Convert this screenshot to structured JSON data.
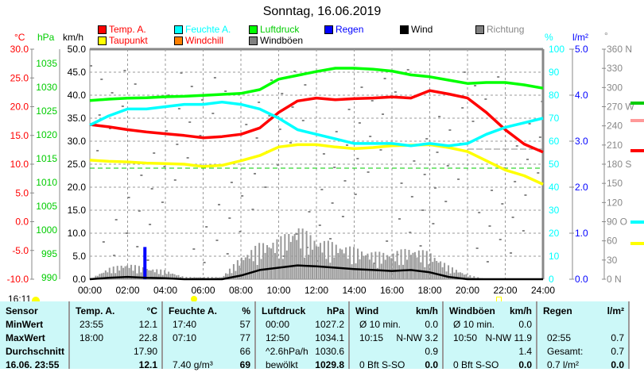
{
  "title": "Sonntag, 16.06.2019",
  "legend": [
    {
      "label": "Temp. A.",
      "color": "#ff0000"
    },
    {
      "label": "Feuchte A.",
      "color": "#00ffff"
    },
    {
      "label": "Luftdruck",
      "color": "#00ff00"
    },
    {
      "label": "Regen",
      "color": "#0000ff"
    },
    {
      "label": "Wind",
      "color": "#000000"
    },
    {
      "label": "Richtung",
      "color": "#808080"
    },
    {
      "label": "Taupunkt",
      "color": "#ffff00"
    },
    {
      "label": "Windchill",
      "color": "#ff8000"
    },
    {
      "label": "Windböen",
      "color": "#808080"
    }
  ],
  "units": {
    "temp": "°C",
    "pressure": "hPa",
    "wind": "km/h",
    "humidity": "%",
    "rain": "l/m²",
    "direction": "°"
  },
  "axes": {
    "temp": [
      "30.0",
      "25.0",
      "20.0",
      "15.0",
      "10.0",
      "5.0",
      "0.0",
      "-5.0",
      "-10.0"
    ],
    "pressure": [
      "1035",
      "1030",
      "1025",
      "1020",
      "1015",
      "1010",
      "1005",
      "1000",
      "995",
      "990"
    ],
    "wind": [
      "50.0",
      "45.0",
      "40.0",
      "35.0",
      "30.0",
      "25.0",
      "20.0",
      "15.0",
      "10.0",
      "5.0",
      "0.0"
    ],
    "humidity": [
      "100",
      "90",
      "80",
      "70",
      "60",
      "50",
      "40",
      "30",
      "20",
      "10",
      "0"
    ],
    "rain": [
      "5.0",
      "4.0",
      "3.0",
      "2.0",
      "1.0",
      "0.0"
    ],
    "direction": [
      "360 N",
      "330",
      "300",
      "270 W",
      "240",
      "210",
      "180 S",
      "150",
      "120",
      "90  O",
      "60",
      "30",
      "0   N"
    ],
    "time": [
      "00:00",
      "02:00",
      "04:00",
      "06:00",
      "08:00",
      "10:00",
      "12:00",
      "14:00",
      "16:00",
      "18:00",
      "20:00",
      "22:00",
      "24:00"
    ]
  },
  "chart_data": {
    "type": "line",
    "x_hours": [
      0,
      1,
      2,
      3,
      4,
      5,
      6,
      7,
      8,
      9,
      10,
      11,
      12,
      13,
      14,
      15,
      16,
      17,
      18,
      19,
      20,
      21,
      22,
      23,
      24
    ],
    "series": [
      {
        "name": "Temp. A.",
        "unit": "°C",
        "color": "#ff0000",
        "values": [
          16.9,
          16.5,
          16.0,
          15.6,
          15.3,
          15.0,
          14.6,
          14.8,
          15.2,
          16.3,
          19.0,
          21.0,
          21.5,
          21.2,
          21.4,
          21.5,
          21.7,
          21.5,
          22.8,
          22.2,
          21.5,
          19.0,
          16.0,
          13.5,
          12.1
        ]
      },
      {
        "name": "Taupunkt",
        "unit": "°C",
        "color": "#ffff00",
        "values": [
          10.7,
          10.5,
          10.4,
          10.2,
          10.1,
          10.0,
          9.6,
          9.8,
          10.6,
          11.5,
          13.0,
          13.4,
          13.4,
          13.0,
          12.7,
          12.9,
          13.2,
          13.3,
          13.4,
          12.9,
          12.2,
          10.6,
          9.0,
          8.0,
          6.5
        ]
      },
      {
        "name": "Feuchte A.",
        "unit": "%",
        "color": "#00ffff",
        "values": [
          67,
          71,
          74,
          74,
          75,
          76,
          76,
          77,
          76,
          74,
          70,
          65,
          63,
          61,
          59,
          59,
          59,
          58,
          59,
          58,
          59,
          63,
          66,
          68,
          70
        ]
      },
      {
        "name": "Luftdruck",
        "unit": "hPa",
        "color": "#00ff00",
        "values": [
          1027.2,
          1027.5,
          1027.7,
          1027.8,
          1028.0,
          1028.1,
          1028.3,
          1028.5,
          1028.7,
          1029.5,
          1031.7,
          1032.5,
          1033.3,
          1034.0,
          1034.0,
          1033.8,
          1033.4,
          1032.6,
          1032.2,
          1031.5,
          1030.8,
          1031.0,
          1031.0,
          1030.5,
          1029.8
        ]
      },
      {
        "name": "Wind",
        "unit": "km/h",
        "color": "#000000",
        "values": [
          0.0,
          0.3,
          0.5,
          0.3,
          0.2,
          0.0,
          0.0,
          0.0,
          0.8,
          2.0,
          2.5,
          3.0,
          2.8,
          2.5,
          2.2,
          2.0,
          1.8,
          2.0,
          1.5,
          0.5,
          0.0,
          0.0,
          0.0,
          0.0,
          0.0
        ]
      },
      {
        "name": "Windböen",
        "unit": "km/h",
        "color": "#808080",
        "values": [
          0,
          2.5,
          3.5,
          2.5,
          2,
          0.5,
          0.5,
          0.5,
          5,
          8,
          9,
          11.9,
          9,
          8,
          7,
          6,
          6,
          7,
          6,
          3,
          1,
          0,
          0,
          0,
          0
        ]
      }
    ],
    "rain": {
      "time": "02:55",
      "value": 0.7,
      "unit": "l/m²"
    },
    "ylim_temp": [
      -10,
      30
    ],
    "ylim_wind": [
      0,
      50
    ],
    "ylim_humidity": [
      0,
      100
    ],
    "ylim_rain": [
      0,
      5
    ],
    "xlim": [
      0,
      24
    ]
  },
  "sun": {
    "time": "16:11"
  },
  "table": {
    "headers": [
      [
        "Sensor",
        ""
      ],
      [
        "Temp. A.",
        "°C"
      ],
      [
        "Feuchte A.",
        "%"
      ],
      [
        "Luftdruck",
        "hPa"
      ],
      [
        "Wind",
        "km/h"
      ],
      [
        "Windböen",
        "km/h"
      ],
      [
        "Regen",
        "l/m²"
      ]
    ],
    "rows": [
      [
        [
          "MinWert",
          ""
        ],
        [
          "23:55",
          "12.1"
        ],
        [
          "17:40",
          "57"
        ],
        [
          "00:00",
          "1027.2"
        ],
        [
          "Ø 10 min.",
          "0.0"
        ],
        [
          "Ø 10 min.",
          "0.0"
        ],
        [
          "",
          ""
        ]
      ],
      [
        [
          "MaxWert",
          ""
        ],
        [
          "18:00",
          "22.8"
        ],
        [
          "07:10",
          "77"
        ],
        [
          "12:50",
          "1034.1"
        ],
        [
          "10:15",
          "N-NW 3.2"
        ],
        [
          "10:50",
          "N-NW 11.9"
        ],
        [
          "02:55",
          "0.7"
        ]
      ],
      [
        [
          "Durchschnitt",
          ""
        ],
        [
          "",
          "17.90"
        ],
        [
          "",
          "66"
        ],
        [
          "^2.6hPa/h",
          "1030.6"
        ],
        [
          "",
          "0.9"
        ],
        [
          "",
          "1.4"
        ],
        [
          "Gesamt:",
          "0.7"
        ]
      ],
      [
        [
          "16.06. 23:55",
          ""
        ],
        [
          "",
          "12.1"
        ],
        [
          "7.40 g/m³",
          "69"
        ],
        [
          "bewölkt",
          "1029.8"
        ],
        [
          "0 Bft S-SO",
          "0.0"
        ],
        [
          "0 Bft S-SO",
          "0.0"
        ],
        [
          "0.7 l/m²",
          "0.0"
        ]
      ]
    ]
  }
}
